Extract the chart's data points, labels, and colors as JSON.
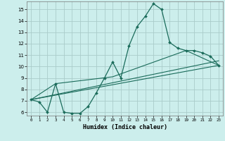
{
  "xlabel": "Humidex (Indice chaleur)",
  "background_color": "#cceeec",
  "grid_color": "#aaccca",
  "line_color": "#1a6b5a",
  "xlim": [
    -0.5,
    23.5
  ],
  "ylim": [
    5.7,
    15.7
  ],
  "yticks": [
    6,
    7,
    8,
    9,
    10,
    11,
    12,
    13,
    14,
    15
  ],
  "xticks": [
    0,
    1,
    2,
    3,
    4,
    5,
    6,
    7,
    8,
    9,
    10,
    11,
    12,
    13,
    14,
    15,
    16,
    17,
    18,
    19,
    20,
    21,
    22,
    23
  ],
  "main_x": [
    0,
    1,
    2,
    3,
    4,
    5,
    6,
    7,
    8,
    9,
    10,
    11,
    12,
    13,
    14,
    15,
    16,
    17,
    18,
    19,
    20,
    21,
    22,
    23
  ],
  "main_y": [
    7.1,
    6.9,
    6.0,
    8.5,
    6.0,
    5.9,
    5.9,
    6.5,
    7.7,
    9.0,
    10.4,
    9.0,
    11.8,
    13.5,
    14.4,
    15.5,
    15.0,
    12.1,
    11.6,
    11.4,
    11.4,
    11.2,
    10.9,
    10.1
  ],
  "trend1_x": [
    0,
    23
  ],
  "trend1_y": [
    7.1,
    10.1
  ],
  "trend2_x": [
    0,
    23
  ],
  "trend2_y": [
    7.1,
    10.5
  ],
  "trend3_x": [
    0,
    3,
    10,
    19,
    23
  ],
  "trend3_y": [
    7.1,
    8.5,
    9.1,
    11.4,
    10.1
  ]
}
